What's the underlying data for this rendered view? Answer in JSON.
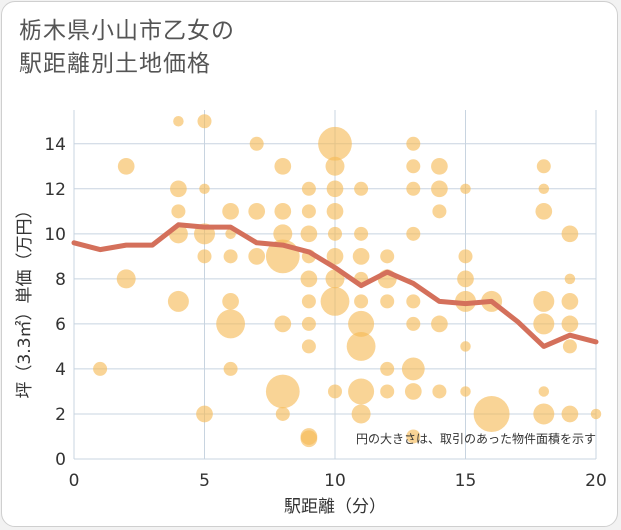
{
  "chart_data": {
    "type": "scatter",
    "title": [
      "栃木県小山市乙女の",
      "駅距離別土地価格"
    ],
    "xlabel": "駅距離（分）",
    "ylabel": "坪（3.3㎡）単価（万円）",
    "xlim": [
      0,
      20
    ],
    "ylim": [
      0,
      15.5
    ],
    "xticks": [
      0,
      5,
      10,
      15,
      20
    ],
    "yticks": [
      0,
      2,
      4,
      6,
      8,
      10,
      12,
      14
    ],
    "grid": true,
    "note": "円の大きさは、取引のあった物件面積を示す",
    "colors": {
      "bubble": "#f5b955",
      "line": "#d4705b",
      "grid": "#c8d4e0"
    },
    "bubbles": [
      {
        "x": 1,
        "y": 4.0,
        "size": 1
      },
      {
        "x": 2,
        "y": 13.0,
        "size": 1.5
      },
      {
        "x": 2,
        "y": 8.0,
        "size": 2
      },
      {
        "x": 4,
        "y": 15.0,
        "size": 0.5
      },
      {
        "x": 4,
        "y": 12.0,
        "size": 1.5
      },
      {
        "x": 4,
        "y": 11.0,
        "size": 1
      },
      {
        "x": 4,
        "y": 10.0,
        "size": 2
      },
      {
        "x": 4,
        "y": 7.0,
        "size": 2.5
      },
      {
        "x": 5,
        "y": 15.0,
        "size": 1
      },
      {
        "x": 5,
        "y": 12.0,
        "size": 0.5
      },
      {
        "x": 5,
        "y": 10.0,
        "size": 2.5
      },
      {
        "x": 5,
        "y": 9.0,
        "size": 1
      },
      {
        "x": 5,
        "y": 2.0,
        "size": 1.5
      },
      {
        "x": 6,
        "y": 11.0,
        "size": 1.5
      },
      {
        "x": 6,
        "y": 10.0,
        "size": 0.5
      },
      {
        "x": 6,
        "y": 9.0,
        "size": 1
      },
      {
        "x": 6,
        "y": 7.0,
        "size": 1.5
      },
      {
        "x": 6,
        "y": 6.0,
        "size": 5
      },
      {
        "x": 6,
        "y": 4.0,
        "size": 1
      },
      {
        "x": 7,
        "y": 14.0,
        "size": 1
      },
      {
        "x": 7,
        "y": 11.0,
        "size": 1.5
      },
      {
        "x": 7,
        "y": 9.0,
        "size": 1.5
      },
      {
        "x": 8,
        "y": 13.0,
        "size": 1.5
      },
      {
        "x": 8,
        "y": 11.0,
        "size": 1.5
      },
      {
        "x": 8,
        "y": 10.0,
        "size": 2
      },
      {
        "x": 8,
        "y": 9.0,
        "size": 7
      },
      {
        "x": 8,
        "y": 6.0,
        "size": 1.5
      },
      {
        "x": 8,
        "y": 3.0,
        "size": 7
      },
      {
        "x": 8,
        "y": 2.0,
        "size": 1
      },
      {
        "x": 9,
        "y": 12.0,
        "size": 1
      },
      {
        "x": 9,
        "y": 11.0,
        "size": 1
      },
      {
        "x": 9,
        "y": 10.0,
        "size": 1.5
      },
      {
        "x": 9,
        "y": 9.0,
        "size": 1
      },
      {
        "x": 9,
        "y": 8.0,
        "size": 1.5
      },
      {
        "x": 9,
        "y": 7.0,
        "size": 1
      },
      {
        "x": 9,
        "y": 6.0,
        "size": 1
      },
      {
        "x": 9,
        "y": 5.0,
        "size": 1
      },
      {
        "x": 9,
        "y": 1.0,
        "size": 1.5
      },
      {
        "x": 10,
        "y": 14.0,
        "size": 7
      },
      {
        "x": 10,
        "y": 13.0,
        "size": 2
      },
      {
        "x": 10,
        "y": 12.0,
        "size": 1.5
      },
      {
        "x": 10,
        "y": 11.0,
        "size": 1.5
      },
      {
        "x": 10,
        "y": 10.0,
        "size": 1
      },
      {
        "x": 10,
        "y": 9.0,
        "size": 1.5
      },
      {
        "x": 10,
        "y": 8.0,
        "size": 2
      },
      {
        "x": 10,
        "y": 7.0,
        "size": 5
      },
      {
        "x": 10,
        "y": 3.0,
        "size": 1
      },
      {
        "x": 11,
        "y": 12.0,
        "size": 1
      },
      {
        "x": 11,
        "y": 10.0,
        "size": 1
      },
      {
        "x": 11,
        "y": 9.0,
        "size": 1.5
      },
      {
        "x": 11,
        "y": 8.0,
        "size": 1
      },
      {
        "x": 11,
        "y": 7.0,
        "size": 1
      },
      {
        "x": 11,
        "y": 6.0,
        "size": 4
      },
      {
        "x": 11,
        "y": 5.0,
        "size": 5
      },
      {
        "x": 11,
        "y": 3.0,
        "size": 4
      },
      {
        "x": 11,
        "y": 2.0,
        "size": 2
      },
      {
        "x": 12,
        "y": 9.0,
        "size": 1
      },
      {
        "x": 12,
        "y": 8.0,
        "size": 2
      },
      {
        "x": 12,
        "y": 7.0,
        "size": 1
      },
      {
        "x": 12,
        "y": 4.0,
        "size": 1
      },
      {
        "x": 12,
        "y": 3.0,
        "size": 1
      },
      {
        "x": 13,
        "y": 14.0,
        "size": 1
      },
      {
        "x": 13,
        "y": 13.0,
        "size": 1
      },
      {
        "x": 13,
        "y": 12.0,
        "size": 1
      },
      {
        "x": 13,
        "y": 10.0,
        "size": 1
      },
      {
        "x": 13,
        "y": 7.0,
        "size": 1
      },
      {
        "x": 13,
        "y": 6.0,
        "size": 1
      },
      {
        "x": 13,
        "y": 4.0,
        "size": 3
      },
      {
        "x": 13,
        "y": 3.0,
        "size": 1.5
      },
      {
        "x": 13,
        "y": 1.0,
        "size": 1
      },
      {
        "x": 14,
        "y": 13.0,
        "size": 1.5
      },
      {
        "x": 14,
        "y": 12.0,
        "size": 1.5
      },
      {
        "x": 14,
        "y": 11.0,
        "size": 1
      },
      {
        "x": 14,
        "y": 6.0,
        "size": 1.5
      },
      {
        "x": 14,
        "y": 3.0,
        "size": 1
      },
      {
        "x": 15,
        "y": 12.0,
        "size": 0.5
      },
      {
        "x": 15,
        "y": 9.0,
        "size": 1
      },
      {
        "x": 15,
        "y": 8.0,
        "size": 1.5
      },
      {
        "x": 15,
        "y": 7.0,
        "size": 2.5
      },
      {
        "x": 15,
        "y": 5.0,
        "size": 0.5
      },
      {
        "x": 15,
        "y": 3.0,
        "size": 0.5
      },
      {
        "x": 16,
        "y": 7.0,
        "size": 2.5
      },
      {
        "x": 16,
        "y": 2.0,
        "size": 8
      },
      {
        "x": 18,
        "y": 13.0,
        "size": 1
      },
      {
        "x": 18,
        "y": 12.0,
        "size": 0.5
      },
      {
        "x": 18,
        "y": 11.0,
        "size": 1.5
      },
      {
        "x": 18,
        "y": 7.0,
        "size": 2.5
      },
      {
        "x": 18,
        "y": 6.0,
        "size": 2.5
      },
      {
        "x": 18,
        "y": 3.0,
        "size": 0.5
      },
      {
        "x": 18,
        "y": 2.0,
        "size": 2.5
      },
      {
        "x": 19,
        "y": 10.0,
        "size": 1.5
      },
      {
        "x": 19,
        "y": 8.0,
        "size": 0.5
      },
      {
        "x": 19,
        "y": 7.0,
        "size": 1.5
      },
      {
        "x": 19,
        "y": 6.0,
        "size": 1.5
      },
      {
        "x": 19,
        "y": 5.0,
        "size": 1
      },
      {
        "x": 19,
        "y": 2.0,
        "size": 1.5
      },
      {
        "x": 20,
        "y": 2.0,
        "size": 0.5
      },
      {
        "x": 9,
        "y": 0.9,
        "size": 1.5
      }
    ],
    "series": [
      {
        "x": [
          0,
          1,
          2,
          3,
          4,
          5,
          6,
          7,
          8,
          9,
          10,
          11,
          12,
          13,
          14,
          15,
          16,
          17,
          18,
          19,
          20
        ],
        "values": [
          9.6,
          9.3,
          9.5,
          9.5,
          10.4,
          10.3,
          10.3,
          9.6,
          9.5,
          9.2,
          8.5,
          7.7,
          8.3,
          7.8,
          7.0,
          6.9,
          7.0,
          6.1,
          5.0,
          5.5,
          5.2
        ]
      }
    ]
  }
}
